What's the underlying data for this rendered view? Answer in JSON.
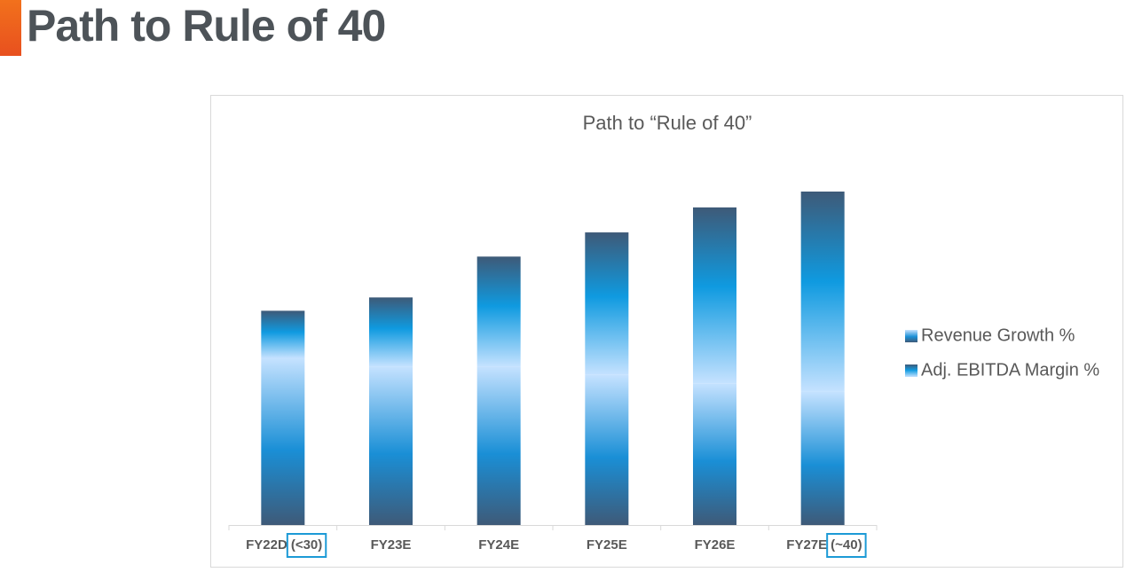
{
  "slide": {
    "title": "Path to Rule of 40"
  },
  "chart_data": {
    "type": "stacked_bar",
    "title": "Path to “Rule of 40”",
    "categories": [
      "FY22D",
      "FY23E",
      "FY24E",
      "FY25E",
      "FY26E",
      "FY27E"
    ],
    "category_notes": [
      "(<30)",
      null,
      null,
      null,
      null,
      "(~40)"
    ],
    "series": [
      {
        "name": "Revenue Growth %",
        "color": "#1a8fd6",
        "values": [
          20,
          19,
          19,
          18,
          17,
          16
        ]
      },
      {
        "name": "Adj. EBITDA Margin %",
        "color": "#0f9ae0",
        "values": [
          5.7,
          8.3,
          13.2,
          17.1,
          21.1,
          24
        ]
      }
    ],
    "legend": "right"
  }
}
